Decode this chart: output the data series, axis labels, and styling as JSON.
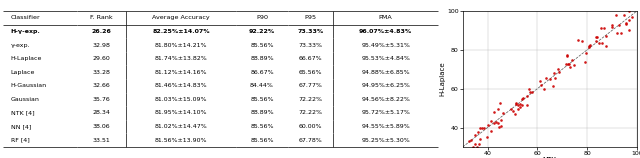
{
  "table": {
    "headers": [
      "Classifier",
      "F. Rank",
      "Average Accuracy",
      "P90",
      "P95",
      "PMA"
    ],
    "rows": [
      [
        "H-γ-exp.",
        "26.26",
        "82.25%±14.07%",
        "92.22%",
        "73.33%",
        "96.07%±4.83%"
      ],
      [
        "γ-exp.",
        "32.98",
        "81.80%±14.21%",
        "85.56%",
        "73.33%",
        "95.49%±5.31%"
      ],
      [
        "H-Laplace",
        "29.60",
        "81.74%±13.82%",
        "88.89%",
        "66.67%",
        "95.53%±4.84%"
      ],
      [
        "Laplace",
        "33.28",
        "81.12%±14.16%",
        "86.67%",
        "65.56%",
        "94.88%±6.85%"
      ],
      [
        "H-Gaussian",
        "32.66",
        "81.46%±14.83%",
        "84.44%",
        "67.77%",
        "94.95%±6.25%"
      ],
      [
        "Gaussian",
        "35.76",
        "81.03%±15.09%",
        "85.56%",
        "72.22%",
        "94.56%±8.22%"
      ],
      [
        "NTK [4]",
        "28.34",
        "81.95%±14.10%",
        "88.89%",
        "72.22%",
        "95.72%±5.17%"
      ],
      [
        "NN [4]",
        "38.06",
        "81.02%±14.47%",
        "85.56%",
        "60.00%",
        "94.55%±5.89%"
      ],
      [
        "RF [4]",
        "33.51",
        "81.56%±13.90%",
        "85.56%",
        "67.78%",
        "95.25%±5.30%"
      ]
    ],
    "bold_row": 0,
    "col_widths": [
      0.13,
      0.085,
      0.195,
      0.09,
      0.08,
      0.185
    ],
    "sep_cols": [
      1,
      4
    ]
  },
  "scatter": {
    "xlabel": "NTK",
    "ylabel": "H-Laplace",
    "xlim": [
      30,
      100
    ],
    "ylim": [
      30,
      100
    ],
    "xticks": [
      40,
      60,
      80,
      100
    ],
    "yticks": [
      40,
      60,
      80,
      100
    ],
    "dot_color": "#cc0000",
    "line_color": "#555555"
  },
  "background_color": "#ffffff"
}
